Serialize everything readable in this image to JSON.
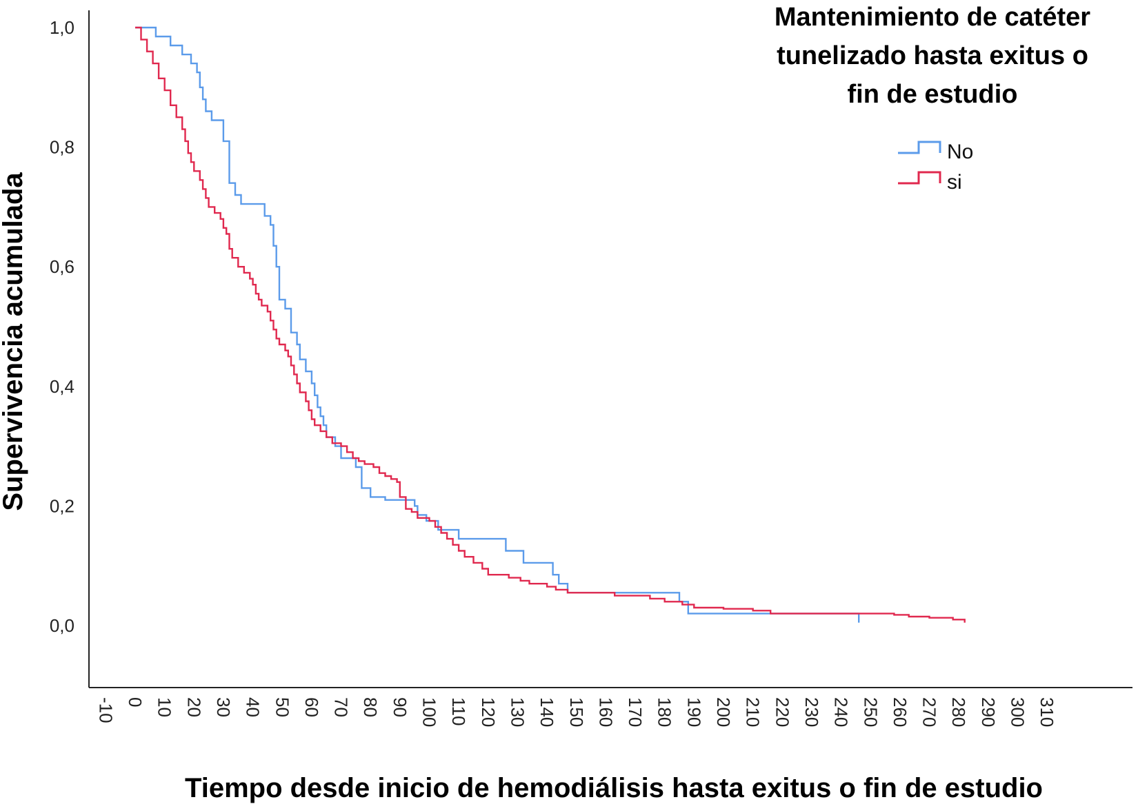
{
  "chart_data": {
    "type": "line",
    "step": true,
    "title": "",
    "xlabel": "Tiempo desde inicio de hemodiálisis hasta exitus o fin de estudio",
    "ylabel": "Supervivencia acumulada",
    "xlim": [
      -10,
      310
    ],
    "ylim": [
      0,
      1
    ],
    "x_ticks": [
      "-10",
      "0",
      "10",
      "20",
      "30",
      "40",
      "50",
      "60",
      "70",
      "80",
      "90",
      "100",
      "110",
      "120",
      "130",
      "140",
      "150",
      "160",
      "170",
      "180",
      "190",
      "200",
      "210",
      "220",
      "230",
      "240",
      "250",
      "260",
      "270",
      "280",
      "290",
      "300",
      "310"
    ],
    "y_ticks": [
      "0,0",
      "0,2",
      "0,4",
      "0,6",
      "0,8",
      "1,0"
    ],
    "grid": false,
    "legend": {
      "title": "Mantenimiento de catéter tunelizado hasta exitus o fin de estudio",
      "title_lines": [
        "Mantenimiento de catéter",
        "tunelizado hasta exitus o",
        "fin de estudio"
      ],
      "placement": "top-right"
    },
    "series": [
      {
        "name": "No",
        "color": "#5b9bea",
        "points": [
          [
            0,
            1.0
          ],
          [
            7,
            1.0
          ],
          [
            7,
            0.985
          ],
          [
            12,
            0.985
          ],
          [
            12,
            0.97
          ],
          [
            16,
            0.97
          ],
          [
            16,
            0.955
          ],
          [
            19,
            0.955
          ],
          [
            19,
            0.94
          ],
          [
            21,
            0.94
          ],
          [
            21,
            0.925
          ],
          [
            22,
            0.925
          ],
          [
            22,
            0.9
          ],
          [
            23,
            0.9
          ],
          [
            23,
            0.88
          ],
          [
            24,
            0.88
          ],
          [
            24,
            0.86
          ],
          [
            26,
            0.86
          ],
          [
            26,
            0.845
          ],
          [
            30,
            0.845
          ],
          [
            30,
            0.81
          ],
          [
            32,
            0.81
          ],
          [
            32,
            0.74
          ],
          [
            34,
            0.74
          ],
          [
            34,
            0.72
          ],
          [
            36,
            0.72
          ],
          [
            36,
            0.705
          ],
          [
            44,
            0.705
          ],
          [
            44,
            0.685
          ],
          [
            46,
            0.685
          ],
          [
            46,
            0.67
          ],
          [
            47,
            0.67
          ],
          [
            47,
            0.635
          ],
          [
            48,
            0.635
          ],
          [
            48,
            0.6
          ],
          [
            49,
            0.6
          ],
          [
            49,
            0.545
          ],
          [
            51,
            0.545
          ],
          [
            51,
            0.53
          ],
          [
            53,
            0.53
          ],
          [
            53,
            0.49
          ],
          [
            55,
            0.49
          ],
          [
            55,
            0.47
          ],
          [
            56,
            0.47
          ],
          [
            56,
            0.445
          ],
          [
            58,
            0.445
          ],
          [
            58,
            0.425
          ],
          [
            60,
            0.425
          ],
          [
            60,
            0.405
          ],
          [
            61,
            0.405
          ],
          [
            61,
            0.385
          ],
          [
            62,
            0.385
          ],
          [
            62,
            0.365
          ],
          [
            63,
            0.365
          ],
          [
            63,
            0.35
          ],
          [
            64,
            0.35
          ],
          [
            64,
            0.335
          ],
          [
            65,
            0.335
          ],
          [
            65,
            0.315
          ],
          [
            68,
            0.315
          ],
          [
            68,
            0.3
          ],
          [
            70,
            0.3
          ],
          [
            70,
            0.28
          ],
          [
            75,
            0.28
          ],
          [
            75,
            0.265
          ],
          [
            77,
            0.265
          ],
          [
            77,
            0.23
          ],
          [
            80,
            0.23
          ],
          [
            80,
            0.215
          ],
          [
            85,
            0.215
          ],
          [
            85,
            0.21
          ],
          [
            95,
            0.21
          ],
          [
            95,
            0.2
          ],
          [
            96,
            0.2
          ],
          [
            96,
            0.185
          ],
          [
            99,
            0.185
          ],
          [
            99,
            0.175
          ],
          [
            103,
            0.175
          ],
          [
            103,
            0.16
          ],
          [
            110,
            0.16
          ],
          [
            110,
            0.145
          ],
          [
            126,
            0.145
          ],
          [
            126,
            0.125
          ],
          [
            132,
            0.125
          ],
          [
            132,
            0.105
          ],
          [
            142,
            0.105
          ],
          [
            142,
            0.085
          ],
          [
            144,
            0.085
          ],
          [
            144,
            0.07
          ],
          [
            147,
            0.07
          ],
          [
            147,
            0.055
          ],
          [
            185,
            0.055
          ],
          [
            185,
            0.04
          ],
          [
            188,
            0.04
          ],
          [
            188,
            0.02
          ],
          [
            246,
            0.02
          ],
          [
            246,
            0.005
          ]
        ]
      },
      {
        "name": "si",
        "color": "#e0284e",
        "points": [
          [
            0,
            1.0
          ],
          [
            2,
            0.98
          ],
          [
            4,
            0.96
          ],
          [
            6,
            0.94
          ],
          [
            8,
            0.915
          ],
          [
            10,
            0.895
          ],
          [
            12,
            0.87
          ],
          [
            14,
            0.85
          ],
          [
            16,
            0.83
          ],
          [
            17,
            0.81
          ],
          [
            18,
            0.79
          ],
          [
            19,
            0.775
          ],
          [
            20,
            0.76
          ],
          [
            22,
            0.745
          ],
          [
            23,
            0.73
          ],
          [
            24,
            0.715
          ],
          [
            25,
            0.7
          ],
          [
            27,
            0.69
          ],
          [
            29,
            0.68
          ],
          [
            30,
            0.665
          ],
          [
            31,
            0.655
          ],
          [
            32,
            0.63
          ],
          [
            33,
            0.615
          ],
          [
            35,
            0.6
          ],
          [
            37,
            0.59
          ],
          [
            39,
            0.58
          ],
          [
            40,
            0.57
          ],
          [
            41,
            0.555
          ],
          [
            42,
            0.545
          ],
          [
            43,
            0.535
          ],
          [
            45,
            0.525
          ],
          [
            46,
            0.51
          ],
          [
            47,
            0.495
          ],
          [
            48,
            0.48
          ],
          [
            49,
            0.47
          ],
          [
            51,
            0.46
          ],
          [
            52,
            0.45
          ],
          [
            53,
            0.435
          ],
          [
            54,
            0.42
          ],
          [
            55,
            0.405
          ],
          [
            56,
            0.39
          ],
          [
            58,
            0.375
          ],
          [
            59,
            0.36
          ],
          [
            60,
            0.345
          ],
          [
            61,
            0.335
          ],
          [
            63,
            0.325
          ],
          [
            65,
            0.315
          ],
          [
            67,
            0.305
          ],
          [
            70,
            0.3
          ],
          [
            72,
            0.29
          ],
          [
            74,
            0.28
          ],
          [
            76,
            0.275
          ],
          [
            78,
            0.27
          ],
          [
            81,
            0.265
          ],
          [
            83,
            0.255
          ],
          [
            85,
            0.25
          ],
          [
            87,
            0.245
          ],
          [
            89,
            0.24
          ],
          [
            90,
            0.215
          ],
          [
            92,
            0.195
          ],
          [
            94,
            0.19
          ],
          [
            96,
            0.18
          ],
          [
            100,
            0.175
          ],
          [
            102,
            0.165
          ],
          [
            104,
            0.155
          ],
          [
            106,
            0.145
          ],
          [
            108,
            0.135
          ],
          [
            110,
            0.125
          ],
          [
            112,
            0.115
          ],
          [
            115,
            0.105
          ],
          [
            118,
            0.095
          ],
          [
            120,
            0.085
          ],
          [
            127,
            0.08
          ],
          [
            131,
            0.075
          ],
          [
            134,
            0.07
          ],
          [
            140,
            0.065
          ],
          [
            143,
            0.06
          ],
          [
            147,
            0.055
          ],
          [
            163,
            0.05
          ],
          [
            175,
            0.045
          ],
          [
            180,
            0.04
          ],
          [
            186,
            0.035
          ],
          [
            190,
            0.03
          ],
          [
            200,
            0.028
          ],
          [
            210,
            0.025
          ],
          [
            216,
            0.02
          ],
          [
            230,
            0.02
          ],
          [
            250,
            0.02
          ],
          [
            258,
            0.018
          ],
          [
            263,
            0.015
          ],
          [
            270,
            0.013
          ],
          [
            278,
            0.01
          ],
          [
            282,
            0.005
          ]
        ]
      }
    ]
  }
}
